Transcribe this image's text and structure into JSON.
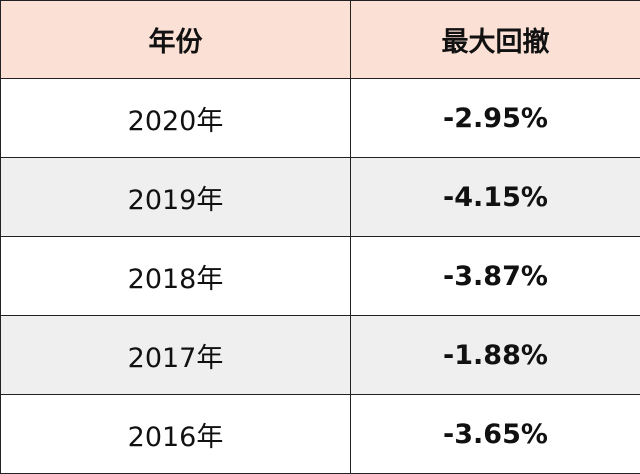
{
  "table": {
    "header": [
      "年份",
      "最大回撤"
    ],
    "rows": [
      [
        "2020年",
        "-2.95%"
      ],
      [
        "2019年",
        "-4.15%"
      ],
      [
        "2018年",
        "-3.87%"
      ],
      [
        "2017年",
        "-1.88%"
      ],
      [
        "2016年",
        "-3.65%"
      ]
    ]
  }
}
